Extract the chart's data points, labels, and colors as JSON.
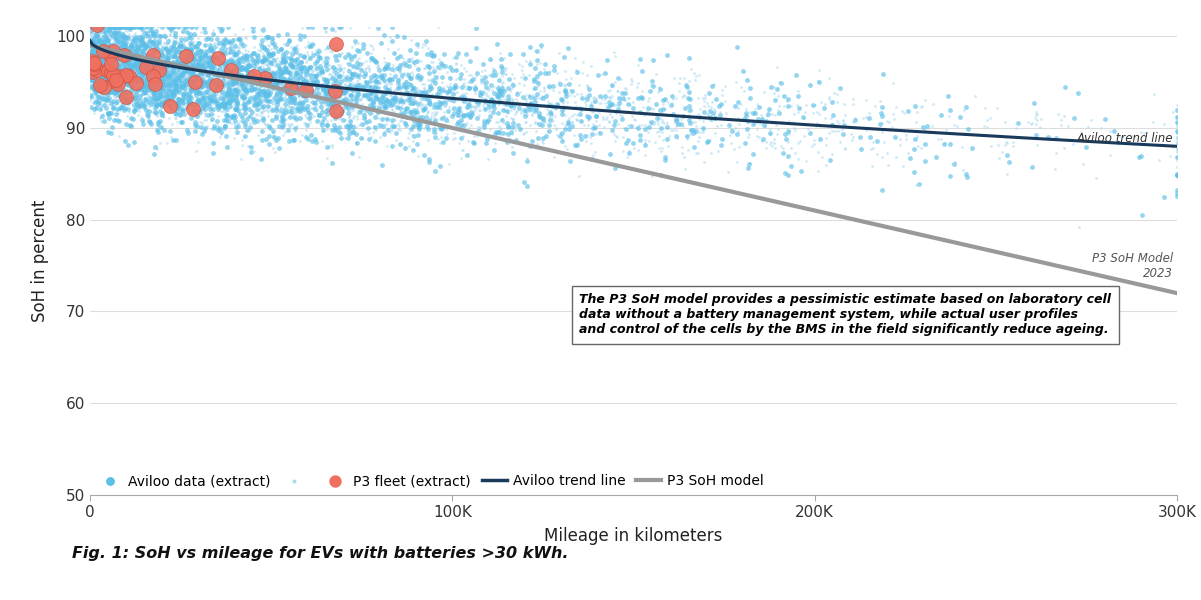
{
  "title": "",
  "xlabel": "Mileage in kilometers",
  "ylabel": "SoH in percent",
  "fig_caption": "Fig. 1: SoH vs mileage for EVs with batteries >30 kWh.",
  "xlim": [
    0,
    300000
  ],
  "ylim": [
    50,
    101
  ],
  "xticks": [
    0,
    100000,
    200000,
    300000
  ],
  "xtick_labels": [
    "0",
    "100K",
    "200K",
    "300K"
  ],
  "yticks": [
    50,
    60,
    70,
    80,
    90,
    100
  ],
  "aviloo_large_color": "#5BBFE8",
  "aviloo_small_color": "#A8D8F0",
  "p3_scatter_color": "#F07060",
  "aviloo_trend_color": "#1a3a5c",
  "p3_trend_color": "#999999",
  "background_color": "#ffffff",
  "grid_color": "#dddddd",
  "annotation_text": "The P3 SoH model provides a pessimistic estimate based on laboratory cell\ndata without a battery management system, while actual user profiles\nand control of the cells by the BMS in the field significantly reduce ageing.",
  "aviloo_trend_label": "Aviloo trend line",
  "p3_trend_label": "P3 SoH Model\n2023",
  "legend_items": [
    "Aviloo data (extract)",
    "P3 fleet (extract)",
    "Aviloo trend line",
    "P3 SoH model"
  ],
  "seed": 42,
  "n_aviloo_large": 3000,
  "n_aviloo_small": 4000,
  "n_p3": 45
}
